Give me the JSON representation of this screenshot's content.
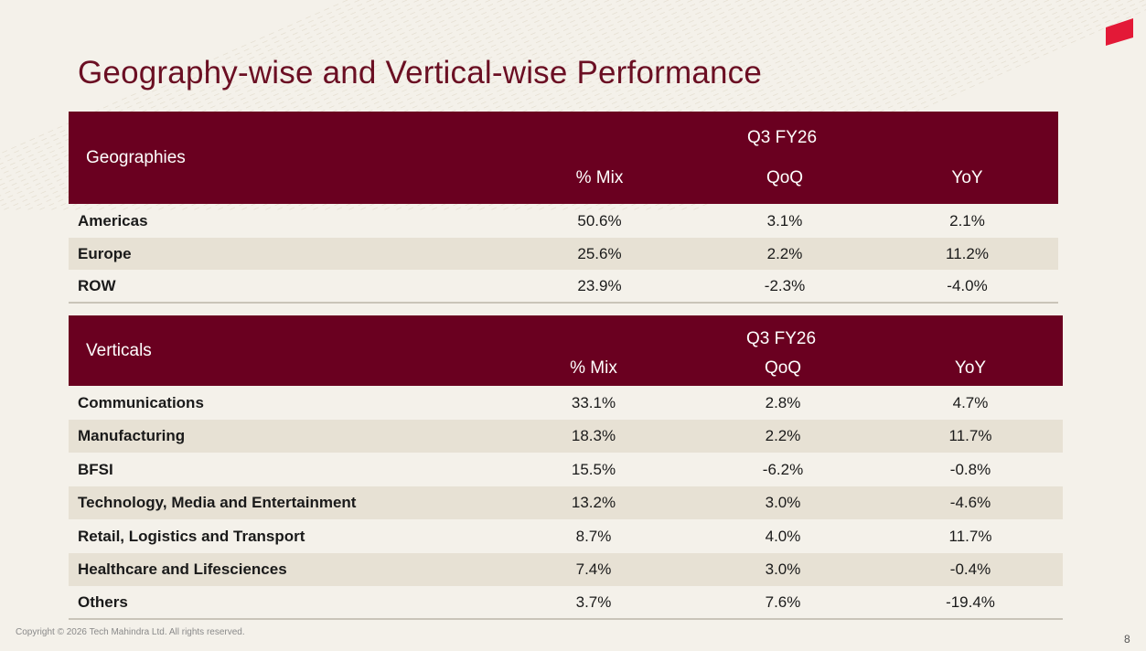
{
  "title": "Geography-wise and Vertical-wise Performance",
  "colors": {
    "header_bg": "#6a0020",
    "title": "#6b0f23",
    "row_alt": "#e7e1d4",
    "background": "#f4f1ea",
    "logo": "#e31937"
  },
  "geographies": {
    "header_label": "Geographies",
    "period": "Q3 FY26",
    "columns": [
      "% Mix",
      "QoQ",
      "YoY"
    ],
    "rows": [
      {
        "name": "Americas",
        "mix": "50.6%",
        "qoq": "3.1%",
        "yoy": "2.1%"
      },
      {
        "name": "Europe",
        "mix": "25.6%",
        "qoq": "2.2%",
        "yoy": "11.2%"
      },
      {
        "name": "ROW",
        "mix": "23.9%",
        "qoq": "-2.3%",
        "yoy": "-4.0%"
      }
    ]
  },
  "verticals": {
    "header_label": "Verticals",
    "period": "Q3 FY26",
    "columns": [
      "% Mix",
      "QoQ",
      "YoY"
    ],
    "rows": [
      {
        "name": "Communications",
        "mix": "33.1%",
        "qoq": "2.8%",
        "yoy": "4.7%"
      },
      {
        "name": "Manufacturing",
        "mix": "18.3%",
        "qoq": "2.2%",
        "yoy": "11.7%"
      },
      {
        "name": "BFSI",
        "mix": "15.5%",
        "qoq": "-6.2%",
        "yoy": "-0.8%"
      },
      {
        "name": "Technology, Media and Entertainment",
        "mix": "13.2%",
        "qoq": "3.0%",
        "yoy": "-4.6%"
      },
      {
        "name": "Retail, Logistics and Transport",
        "mix": "8.7%",
        "qoq": "4.0%",
        "yoy": "11.7%"
      },
      {
        "name": "Healthcare and Lifesciences",
        "mix": "7.4%",
        "qoq": "3.0%",
        "yoy": "-0.4%"
      },
      {
        "name": "Others",
        "mix": "3.7%",
        "qoq": "7.6%",
        "yoy": "-19.4%"
      }
    ]
  },
  "footer": {
    "copyright": "Copyright © 2026 Tech Mahindra Ltd. All rights reserved.",
    "page_number": "8"
  }
}
